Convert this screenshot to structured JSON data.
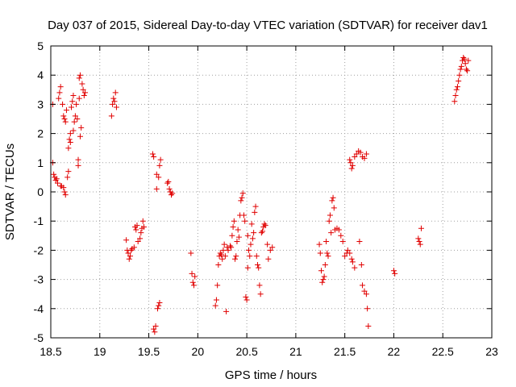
{
  "chart_data": {
    "type": "scatter",
    "title": "Day 037 of 2015, Sidereal Day-to-day VTEC variation (SDTVAR) for receiver dav1",
    "xlabel": "GPS time / hours",
    "ylabel": "SDTVAR / TECUs",
    "xlim": [
      18.5,
      23
    ],
    "ylim": [
      -5,
      5
    ],
    "xticks": [
      "18.5",
      "19",
      "19.5",
      "20",
      "20.5",
      "21",
      "21.5",
      "22",
      "22.5",
      "23"
    ],
    "yticks": [
      "5",
      "4",
      "3",
      "2",
      "1",
      "0",
      "-1",
      "-2",
      "-3",
      "-4",
      "-5"
    ],
    "grid": true,
    "marker": "+",
    "color": "#e00000",
    "series": [
      {
        "name": "dav1",
        "points": [
          [
            18.52,
            1.0
          ],
          [
            18.52,
            3.0
          ],
          [
            18.53,
            0.6
          ],
          [
            18.54,
            0.5
          ],
          [
            18.55,
            0.4
          ],
          [
            18.56,
            0.45
          ],
          [
            18.57,
            0.3
          ],
          [
            18.58,
            3.2
          ],
          [
            18.59,
            3.4
          ],
          [
            18.6,
            3.6
          ],
          [
            18.6,
            0.2
          ],
          [
            18.61,
            0.2
          ],
          [
            18.62,
            3.0
          ],
          [
            18.63,
            2.6
          ],
          [
            18.63,
            0.15
          ],
          [
            18.64,
            2.5
          ],
          [
            18.64,
            0.0
          ],
          [
            18.65,
            2.4
          ],
          [
            18.65,
            -0.1
          ],
          [
            18.66,
            2.8
          ],
          [
            18.67,
            0.5
          ],
          [
            18.68,
            0.7
          ],
          [
            18.68,
            1.5
          ],
          [
            18.69,
            1.8
          ],
          [
            18.7,
            2.0
          ],
          [
            18.7,
            1.7
          ],
          [
            18.71,
            2.9
          ],
          [
            18.72,
            3.1
          ],
          [
            18.73,
            3.3
          ],
          [
            18.73,
            2.1
          ],
          [
            18.74,
            2.4
          ],
          [
            18.75,
            2.6
          ],
          [
            18.76,
            3.0
          ],
          [
            18.77,
            2.5
          ],
          [
            18.78,
            1.1
          ],
          [
            18.78,
            0.9
          ],
          [
            18.79,
            3.2
          ],
          [
            18.79,
            3.9
          ],
          [
            18.8,
            4.0
          ],
          [
            18.8,
            1.9
          ],
          [
            18.81,
            2.2
          ],
          [
            18.82,
            3.7
          ],
          [
            18.83,
            3.5
          ],
          [
            18.84,
            3.3
          ],
          [
            18.85,
            3.4
          ],
          [
            19.12,
            2.6
          ],
          [
            19.13,
            3.0
          ],
          [
            19.14,
            3.2
          ],
          [
            19.15,
            3.1
          ],
          [
            19.16,
            3.4
          ],
          [
            19.17,
            2.9
          ],
          [
            19.27,
            -1.65
          ],
          [
            19.28,
            -2.0
          ],
          [
            19.29,
            -2.1
          ],
          [
            19.3,
            -2.3
          ],
          [
            19.31,
            -2.2
          ],
          [
            19.32,
            -2.0
          ],
          [
            19.33,
            -1.95
          ],
          [
            19.35,
            -1.9
          ],
          [
            19.36,
            -1.2
          ],
          [
            19.37,
            -1.3
          ],
          [
            19.38,
            -1.15
          ],
          [
            19.39,
            -1.7
          ],
          [
            19.41,
            -1.6
          ],
          [
            19.42,
            -1.4
          ],
          [
            19.43,
            -1.25
          ],
          [
            19.44,
            -1.0
          ],
          [
            19.45,
            -1.2
          ],
          [
            19.54,
            1.3
          ],
          [
            19.55,
            1.2
          ],
          [
            19.55,
            -4.7
          ],
          [
            19.56,
            -4.8
          ],
          [
            19.57,
            -4.6
          ],
          [
            19.58,
            0.6
          ],
          [
            19.58,
            0.1
          ],
          [
            19.59,
            -4.0
          ],
          [
            19.6,
            -3.9
          ],
          [
            19.61,
            -3.8
          ],
          [
            19.6,
            0.5
          ],
          [
            19.61,
            0.9
          ],
          [
            19.62,
            1.1
          ],
          [
            19.69,
            0.3
          ],
          [
            19.7,
            0.35
          ],
          [
            19.71,
            0.1
          ],
          [
            19.72,
            0.0
          ],
          [
            19.73,
            -0.1
          ],
          [
            19.74,
            -0.05
          ],
          [
            19.93,
            -2.1
          ],
          [
            19.94,
            -2.8
          ],
          [
            19.95,
            -3.1
          ],
          [
            19.96,
            -3.2
          ],
          [
            19.97,
            -2.9
          ],
          [
            20.18,
            -3.9
          ],
          [
            20.19,
            -3.7
          ],
          [
            20.2,
            -3.2
          ],
          [
            20.21,
            -2.5
          ],
          [
            20.22,
            -2.2
          ],
          [
            20.23,
            -2.1
          ],
          [
            20.24,
            -2.15
          ],
          [
            20.25,
            -2.3
          ],
          [
            20.26,
            -2.0
          ],
          [
            20.27,
            -1.8
          ],
          [
            20.28,
            -2.2
          ],
          [
            20.29,
            -4.1
          ],
          [
            20.3,
            -1.9
          ],
          [
            20.31,
            -2.0
          ],
          [
            20.33,
            -1.85
          ],
          [
            20.34,
            -1.9
          ],
          [
            20.35,
            -1.5
          ],
          [
            20.36,
            -1.2
          ],
          [
            20.37,
            -1.0
          ],
          [
            20.38,
            -2.3
          ],
          [
            20.39,
            -2.2
          ],
          [
            20.4,
            -1.7
          ],
          [
            20.41,
            -1.3
          ],
          [
            20.42,
            -1.55
          ],
          [
            20.43,
            -0.8
          ],
          [
            20.44,
            -0.3
          ],
          [
            20.45,
            -0.2
          ],
          [
            20.46,
            -0.05
          ],
          [
            20.47,
            -0.8
          ],
          [
            20.48,
            -1.0
          ],
          [
            20.49,
            -3.6
          ],
          [
            20.5,
            -3.7
          ],
          [
            20.51,
            -2.6
          ],
          [
            20.51,
            -1.5
          ],
          [
            20.52,
            -2.0
          ],
          [
            20.53,
            -2.2
          ],
          [
            20.54,
            -1.8
          ],
          [
            20.55,
            -1.1
          ],
          [
            20.56,
            -1.6
          ],
          [
            20.57,
            -1.4
          ],
          [
            20.58,
            -0.7
          ],
          [
            20.59,
            -0.5
          ],
          [
            20.6,
            -2.2
          ],
          [
            20.61,
            -2.5
          ],
          [
            20.62,
            -2.6
          ],
          [
            20.63,
            -3.2
          ],
          [
            20.64,
            -3.5
          ],
          [
            20.65,
            -1.4
          ],
          [
            20.66,
            -1.35
          ],
          [
            20.67,
            -1.2
          ],
          [
            20.68,
            -1.1
          ],
          [
            20.69,
            -1.15
          ],
          [
            20.71,
            -1.8
          ],
          [
            20.72,
            -2.3
          ],
          [
            20.74,
            -2.0
          ],
          [
            20.76,
            -1.9
          ],
          [
            21.24,
            -1.8
          ],
          [
            21.25,
            -2.1
          ],
          [
            21.26,
            -2.7
          ],
          [
            21.27,
            -3.1
          ],
          [
            21.28,
            -3.0
          ],
          [
            21.29,
            -2.9
          ],
          [
            21.3,
            -2.5
          ],
          [
            21.31,
            -1.7
          ],
          [
            21.32,
            -2.1
          ],
          [
            21.33,
            -2.2
          ],
          [
            21.34,
            -1.0
          ],
          [
            21.35,
            -0.8
          ],
          [
            21.36,
            -1.4
          ],
          [
            21.37,
            -0.3
          ],
          [
            21.38,
            -0.2
          ],
          [
            21.39,
            -0.55
          ],
          [
            21.4,
            -1.3
          ],
          [
            21.42,
            -1.25
          ],
          [
            21.44,
            -1.3
          ],
          [
            21.46,
            -1.5
          ],
          [
            21.48,
            -1.7
          ],
          [
            21.5,
            -2.2
          ],
          [
            21.52,
            -2.1
          ],
          [
            21.53,
            -2.0
          ],
          [
            21.55,
            -2.1
          ],
          [
            21.57,
            -2.3
          ],
          [
            21.58,
            -2.4
          ],
          [
            21.6,
            -2.6
          ],
          [
            21.55,
            1.1
          ],
          [
            21.56,
            1.0
          ],
          [
            21.57,
            0.8
          ],
          [
            21.58,
            0.9
          ],
          [
            21.6,
            1.2
          ],
          [
            21.62,
            1.3
          ],
          [
            21.64,
            1.4
          ],
          [
            21.66,
            1.35
          ],
          [
            21.68,
            1.2
          ],
          [
            21.7,
            1.15
          ],
          [
            21.72,
            1.3
          ],
          [
            21.65,
            -1.7
          ],
          [
            21.67,
            -2.5
          ],
          [
            21.68,
            -3.2
          ],
          [
            21.7,
            -3.4
          ],
          [
            21.72,
            -3.5
          ],
          [
            21.73,
            -4.0
          ],
          [
            21.74,
            -4.6
          ],
          [
            22.0,
            -2.7
          ],
          [
            22.01,
            -2.8
          ],
          [
            22.25,
            -1.6
          ],
          [
            22.26,
            -1.7
          ],
          [
            22.27,
            -1.8
          ],
          [
            22.28,
            -1.25
          ],
          [
            22.62,
            3.1
          ],
          [
            22.63,
            3.3
          ],
          [
            22.64,
            3.5
          ],
          [
            22.65,
            3.6
          ],
          [
            22.66,
            3.8
          ],
          [
            22.67,
            4.0
          ],
          [
            22.68,
            4.2
          ],
          [
            22.69,
            4.3
          ],
          [
            22.7,
            4.5
          ],
          [
            22.71,
            4.6
          ],
          [
            22.72,
            4.55
          ],
          [
            22.73,
            4.4
          ],
          [
            22.74,
            4.2
          ],
          [
            22.75,
            4.15
          ],
          [
            22.76,
            4.5
          ]
        ]
      }
    ]
  }
}
